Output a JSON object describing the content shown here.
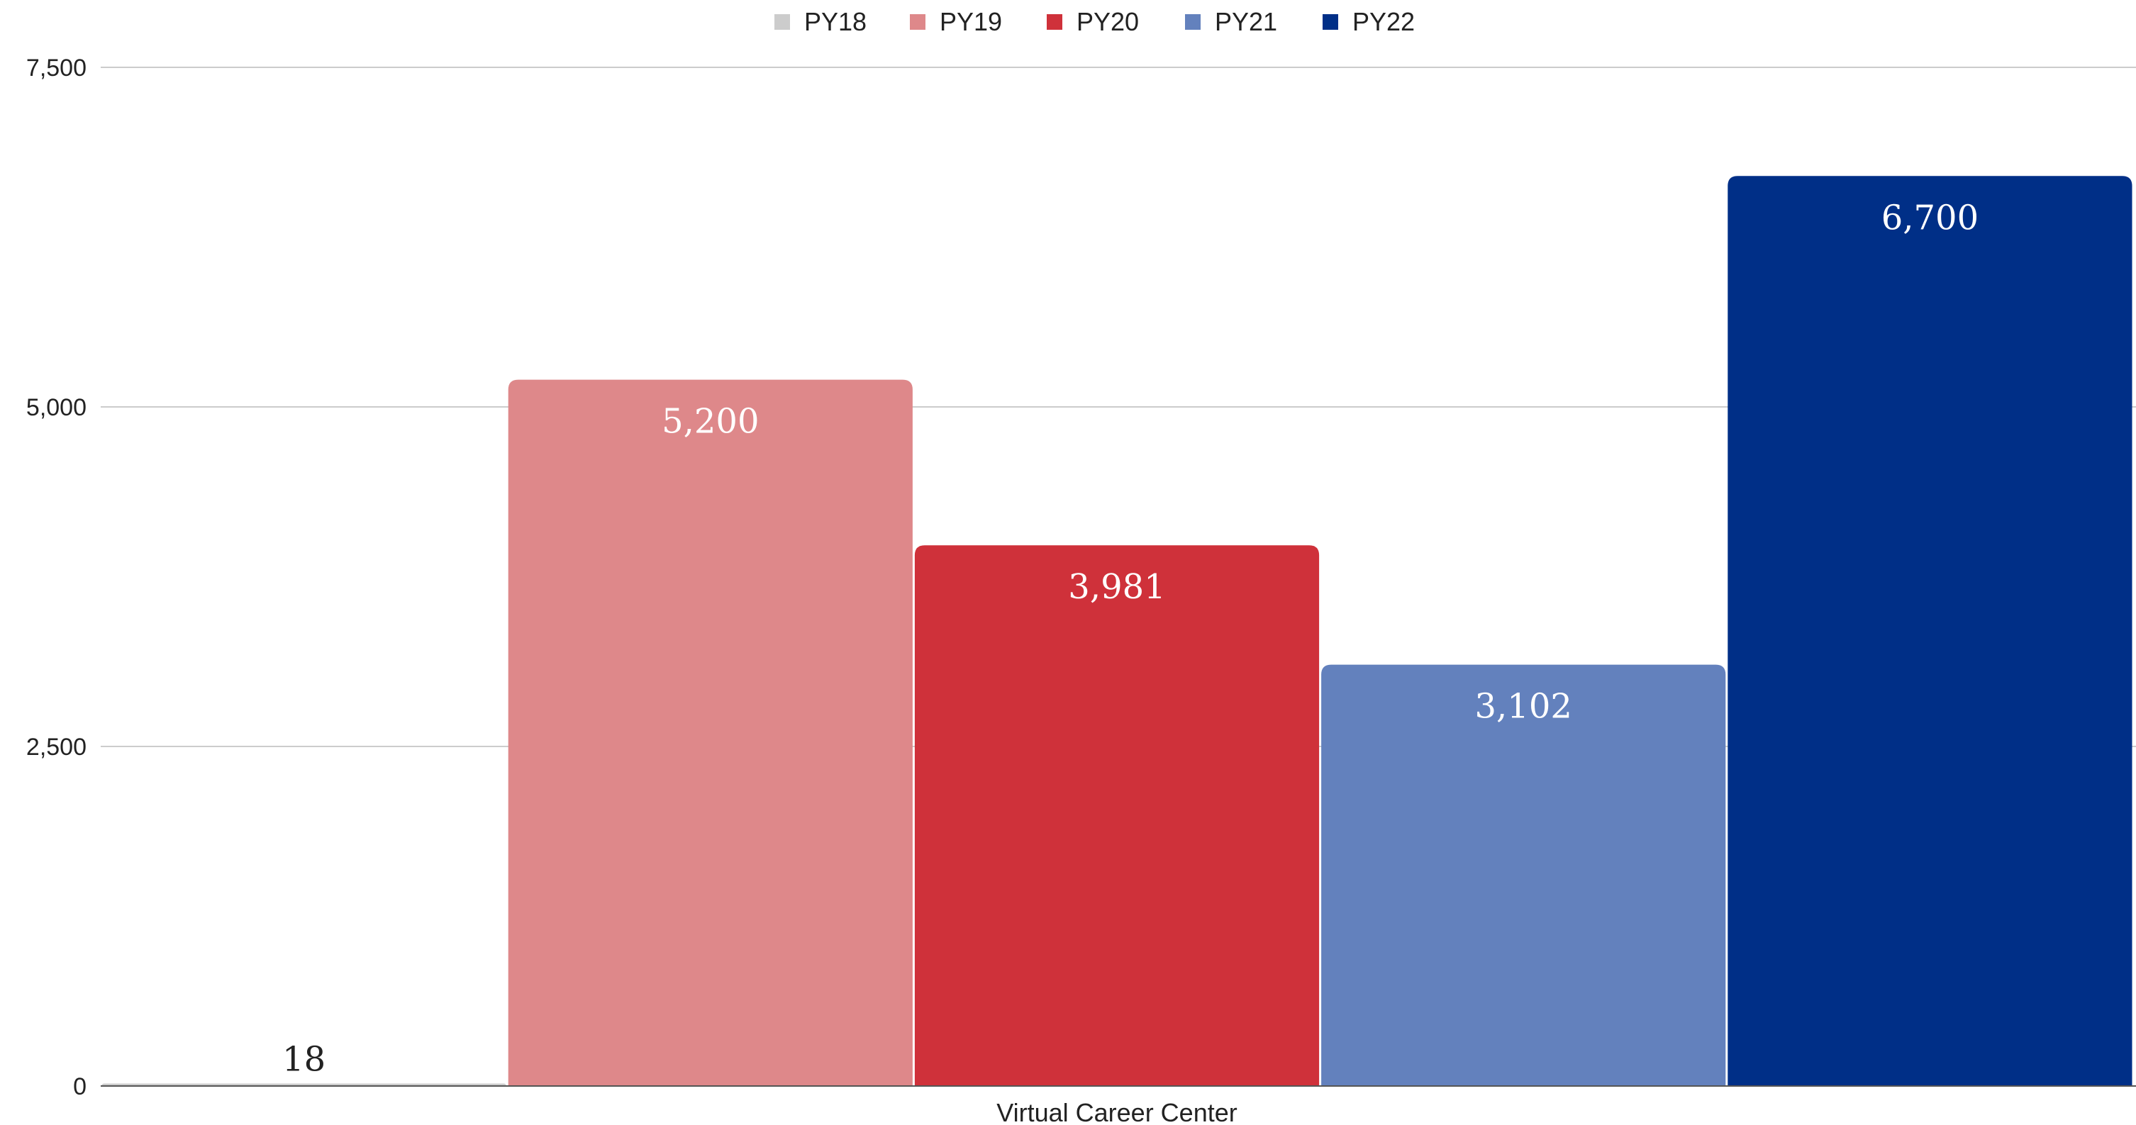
{
  "chart_data": {
    "type": "bar",
    "categories": [
      "Virtual Career Center"
    ],
    "series": [
      {
        "name": "PY18",
        "values": [
          18
        ],
        "color": "#cccccc",
        "value_label": "18"
      },
      {
        "name": "PY19",
        "values": [
          5200
        ],
        "color": "#de888a",
        "value_label": "5,200"
      },
      {
        "name": "PY20",
        "values": [
          3981
        ],
        "color": "#cf313a",
        "value_label": "3,981"
      },
      {
        "name": "PY21",
        "values": [
          3102
        ],
        "color": "#6381bd",
        "value_label": "3,102"
      },
      {
        "name": "PY22",
        "values": [
          6700
        ],
        "color": "#002f87",
        "value_label": "6,700"
      }
    ],
    "ylim": [
      0,
      7500
    ],
    "yticks": [
      0,
      2500,
      5000,
      7500
    ],
    "ytick_labels": [
      "0",
      "2,500",
      "5,000",
      "7,500"
    ],
    "legend_position": "top",
    "grid": true
  }
}
